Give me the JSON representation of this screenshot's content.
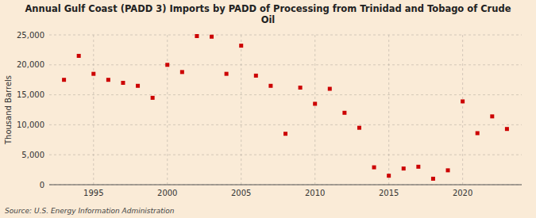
{
  "chart_data": {
    "type": "scatter",
    "title": "Annual Gulf Coast (PADD 3) Imports by PADD of Processing from Trinidad and Tobago of Crude\nOil",
    "y_label": "Thousand Barrels",
    "annotations": [
      "Source: U.S. Energy Information Administration"
    ],
    "x": [
      1993,
      1994,
      1995,
      1996,
      1997,
      1998,
      1999,
      2000,
      2001,
      2002,
      2003,
      2004,
      2005,
      2006,
      2007,
      2008,
      2009,
      2010,
      2011,
      2012,
      2013,
      2014,
      2015,
      2016,
      2017,
      2018,
      2019,
      2020,
      2021,
      2022,
      2023
    ],
    "values": [
      17500,
      21500,
      18500,
      17500,
      17000,
      16500,
      14500,
      20000,
      18800,
      24800,
      24700,
      18500,
      23200,
      18200,
      16500,
      8500,
      16200,
      13500,
      16000,
      12000,
      9500,
      2900,
      1500,
      2700,
      3000,
      1000,
      2400,
      13900,
      8600,
      11400,
      9300
    ],
    "color": "#cc0000",
    "marker": "square",
    "xlim": [
      1992,
      2024
    ],
    "xticks": [
      1995,
      2000,
      2005,
      2010,
      2015,
      2020
    ],
    "ylim": [
      0,
      25000
    ],
    "yticks": [
      0,
      {
        "value": 5000,
        "label": "5,000"
      },
      {
        "value": 10000,
        "label": "10,000"
      },
      {
        "value": 15000,
        "label": "15,000"
      },
      {
        "value": 20000,
        "label": "20,000"
      },
      {
        "value": 25000,
        "label": "25,000"
      }
    ],
    "grid": true
  }
}
